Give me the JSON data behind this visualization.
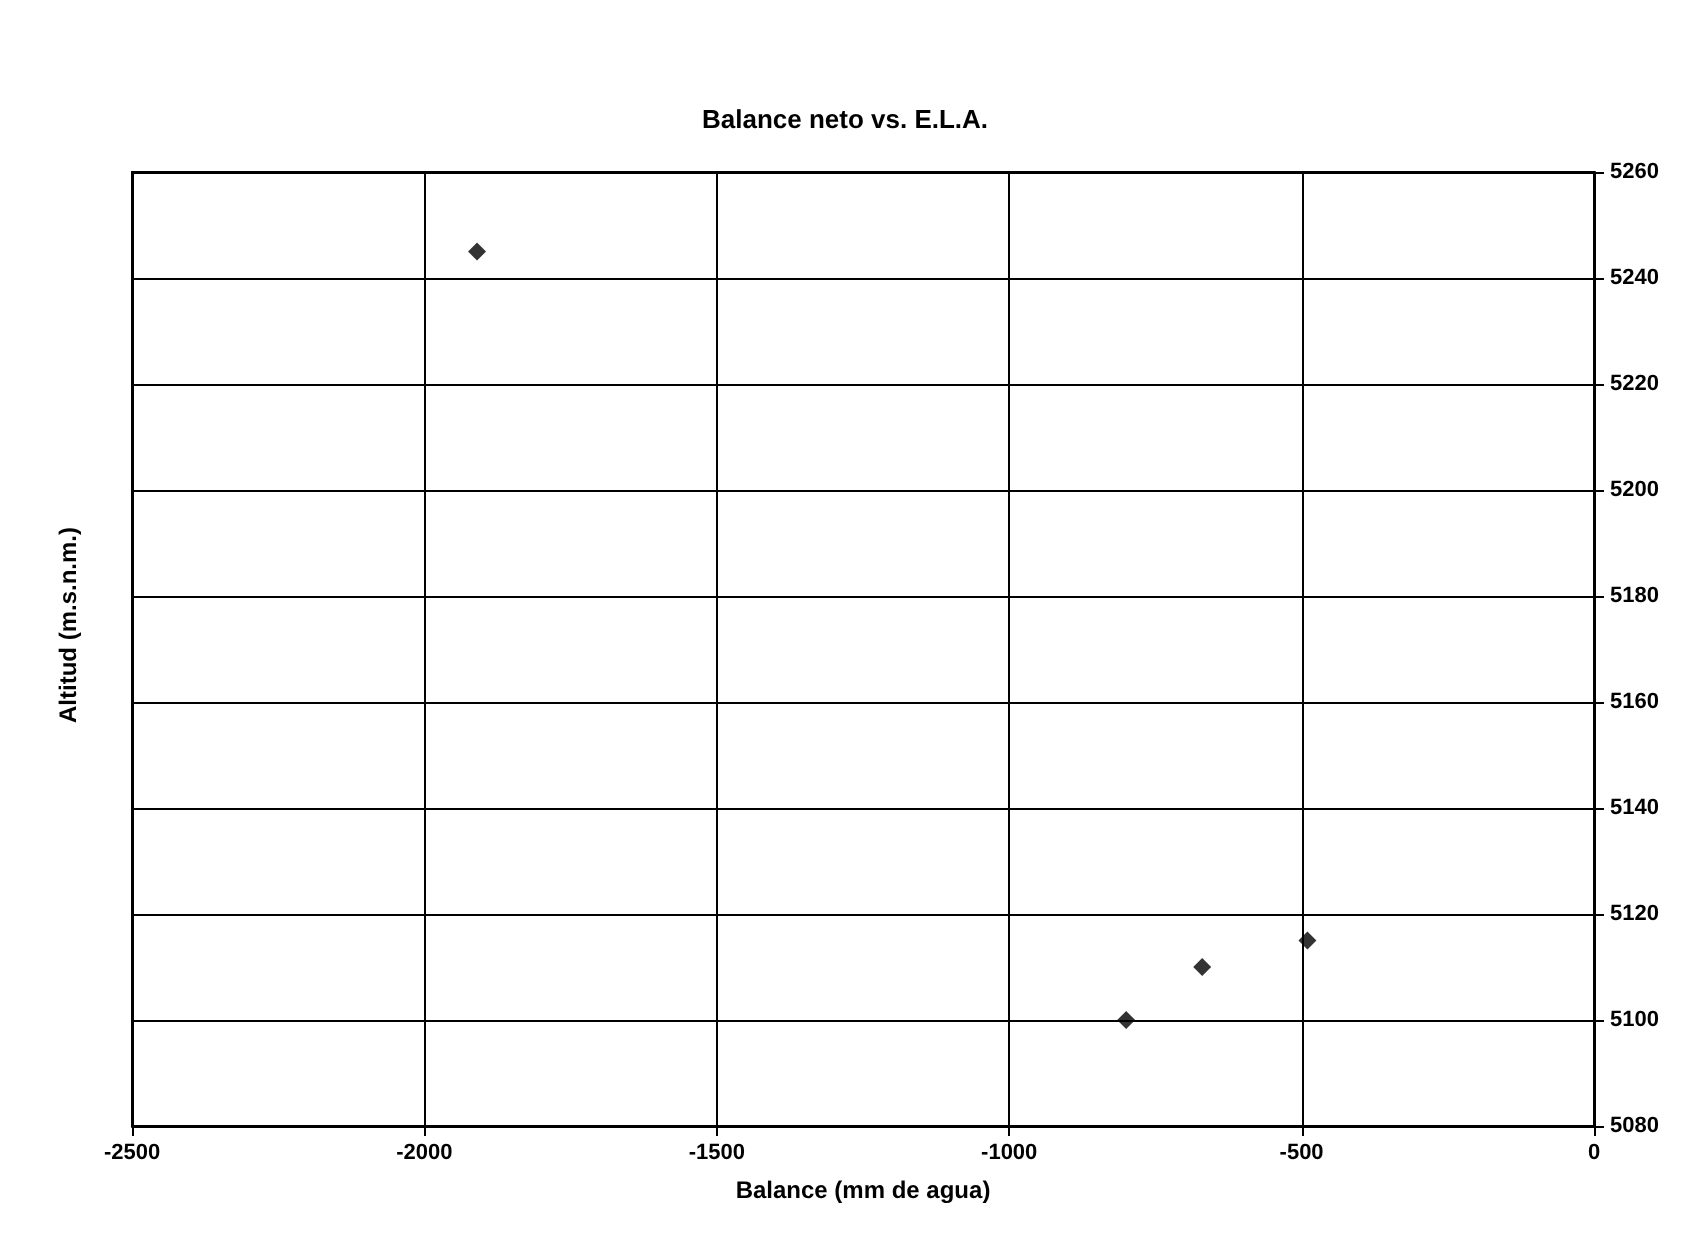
{
  "chart_data": {
    "type": "scatter",
    "title": "Balance neto vs. E.L.A.",
    "xlabel": "Balance (mm de agua)",
    "ylabel": "Altitud (m.s.n.m.)",
    "x": [
      -1910,
      -800,
      -670,
      -490
    ],
    "values": [
      5245,
      5100,
      5110,
      5115
    ],
    "color": "#000000",
    "marker": "diamond",
    "xlim": [
      -2500,
      0
    ],
    "xticks": [
      -2500,
      -2000,
      -1500,
      -1000,
      -500,
      0
    ],
    "ylim": [
      5080,
      5260
    ],
    "yticks": [
      5080,
      5100,
      5120,
      5140,
      5160,
      5180,
      5200,
      5220,
      5240,
      5260
    ],
    "grid": true
  }
}
